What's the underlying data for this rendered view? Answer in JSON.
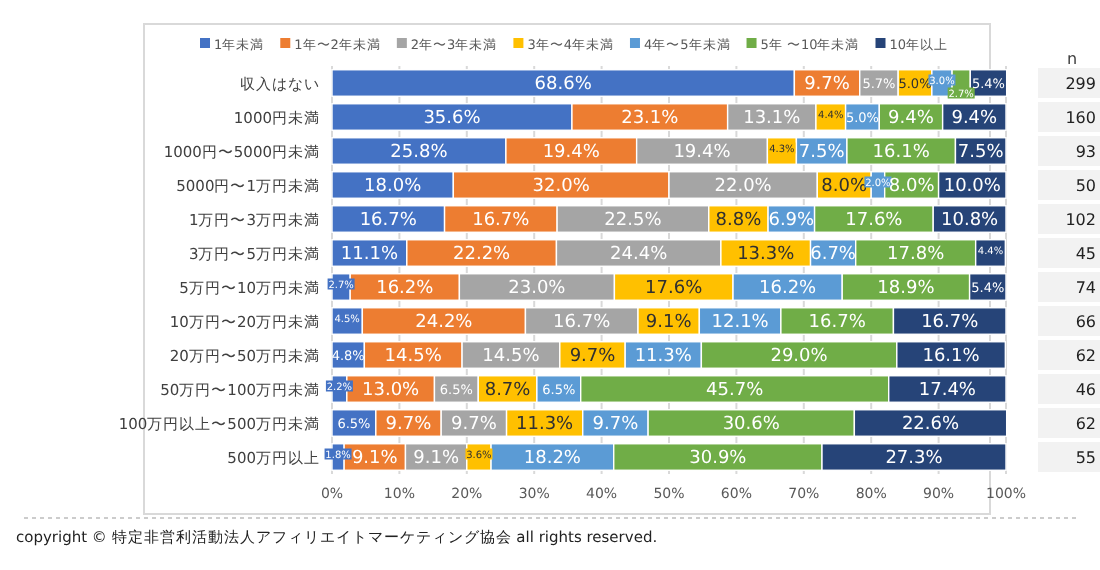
{
  "chart_data": {
    "type": "bar",
    "orientation": "horizontal",
    "stacked": true,
    "legend": "top",
    "grid": "x",
    "categories": [
      "収入はない",
      "1000円未満",
      "1000円〜5000円未満",
      "5000円〜1万円未満",
      "1万円〜3万円未満",
      "3万円〜5万円未満",
      "5万円〜10万円未満",
      "10万円〜20万円未満",
      "20万円〜50万円未満",
      "50万円〜100万円未満",
      "100万円以上〜500万円未満",
      "500万円以上"
    ],
    "xlim": [
      0,
      100
    ],
    "xticks": [
      {
        "value": 0,
        "label": "0%"
      },
      {
        "value": 10,
        "label": "10%"
      },
      {
        "value": 20,
        "label": "20%"
      },
      {
        "value": 30,
        "label": "30%"
      },
      {
        "value": 40,
        "label": "40%"
      },
      {
        "value": 50,
        "label": "50%"
      },
      {
        "value": 60,
        "label": "60%"
      },
      {
        "value": 70,
        "label": "70%"
      },
      {
        "value": 80,
        "label": "80%"
      },
      {
        "value": 90,
        "label": "90%"
      },
      {
        "value": 100,
        "label": "100%"
      }
    ],
    "series": [
      {
        "name": "1年未満",
        "color": "#4472c4",
        "values": [
          68.6,
          35.6,
          25.8,
          18.0,
          16.7,
          11.1,
          2.7,
          4.5,
          4.8,
          2.2,
          6.5,
          1.8
        ],
        "value_labels": [
          "68.6%",
          "35.6%",
          "25.8%",
          "18.0%",
          "16.7%",
          "11.1%",
          "2.7%",
          "4.5%",
          "4.8%",
          "2.2%",
          "6.5%",
          "1.8%"
        ]
      },
      {
        "name": "1年〜2年未満",
        "color": "#ed7d31",
        "values": [
          9.7,
          23.1,
          19.4,
          32.0,
          16.7,
          22.2,
          16.2,
          24.2,
          14.5,
          13.0,
          9.7,
          9.1
        ],
        "value_labels": [
          "9.7%",
          "23.1%",
          "19.4%",
          "32.0%",
          "16.7%",
          "22.2%",
          "16.2%",
          "24.2%",
          "14.5%",
          "13.0%",
          "9.7%",
          "9.1%"
        ]
      },
      {
        "name": "2年〜3年未満",
        "color": "#a5a5a5",
        "values": [
          5.7,
          13.1,
          19.4,
          22.0,
          22.5,
          24.4,
          23.0,
          16.7,
          14.5,
          6.5,
          9.7,
          9.1
        ],
        "value_labels": [
          "5.7%",
          "13.1%",
          "19.4%",
          "22.0%",
          "22.5%",
          "24.4%",
          "23.0%",
          "16.7%",
          "14.5%",
          "6.5%",
          "9.7%",
          "9.1%"
        ]
      },
      {
        "name": "3年〜4年未満",
        "color": "#ffc000",
        "values": [
          5.0,
          4.4,
          4.3,
          8.0,
          8.8,
          13.3,
          17.6,
          9.1,
          9.7,
          8.7,
          11.3,
          3.6
        ],
        "value_labels": [
          "5.0%",
          "4.4%",
          "4.3%",
          "8.0%",
          "8.8%",
          "13.3%",
          "17.6%",
          "9.1%",
          "9.7%",
          "8.7%",
          "11.3%",
          "3.6%"
        ]
      },
      {
        "name": "4年〜5年未満",
        "color": "#5b9bd5",
        "values": [
          3.0,
          5.0,
          7.5,
          2.0,
          6.9,
          6.7,
          16.2,
          12.1,
          11.3,
          6.5,
          9.7,
          18.2
        ],
        "value_labels": [
          "3.0%",
          "5.0%",
          "7.5%",
          "2.0%",
          "6.9%",
          "6.7%",
          "16.2%",
          "12.1%",
          "11.3%",
          "6.5%",
          "9.7%",
          "18.2%"
        ]
      },
      {
        "name": "5年 〜10年未満",
        "color": "#70ad47",
        "values": [
          2.7,
          9.4,
          16.1,
          8.0,
          17.6,
          17.8,
          18.9,
          16.7,
          29.0,
          45.7,
          30.6,
          30.9
        ],
        "value_labels": [
          "2.7%",
          "9.4%",
          "16.1%",
          "8.0%",
          "17.6%",
          "17.8%",
          "18.9%",
          "16.7%",
          "29.0%",
          "45.7%",
          "30.6%",
          "30.9%"
        ]
      },
      {
        "name": "10年以上",
        "color": "#264478",
        "values": [
          5.4,
          9.4,
          7.5,
          10.0,
          10.8,
          4.4,
          5.4,
          16.7,
          16.1,
          17.4,
          22.6,
          27.3
        ],
        "value_labels": [
          "5.4%",
          "9.4%",
          "7.5%",
          "10.0%",
          "10.8%",
          "4.4%",
          "5.4%",
          "16.7%",
          "16.1%",
          "17.4%",
          "22.6%",
          "27.3%"
        ]
      }
    ],
    "annotations": [
      "n",
      "299",
      "160",
      "93",
      "50",
      "102",
      "45",
      "74",
      "66",
      "62",
      "46",
      "62",
      "55",
      "copyright © 特定非営利活動法人アフィリエイトマーケティング協会 all rights reserved."
    ]
  }
}
